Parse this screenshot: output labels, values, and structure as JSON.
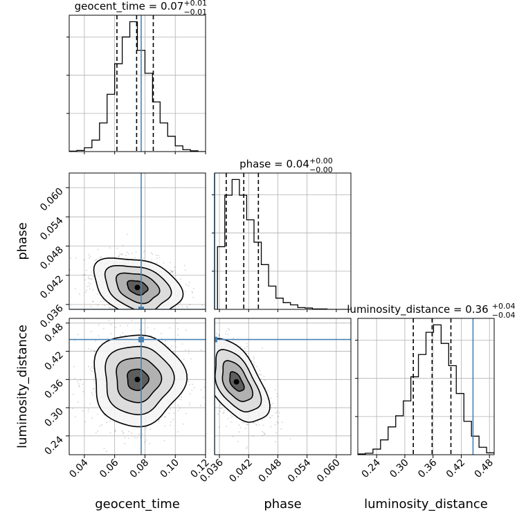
{
  "chart_data": {
    "type": "corner",
    "parameters": [
      "geocent_time",
      "phase",
      "luminosity_distance"
    ],
    "titles": [
      {
        "param": "geocent_time",
        "text": "geocent_time = 0.07",
        "plus": "+0.01",
        "minus": "−0.01"
      },
      {
        "param": "phase",
        "text": "phase = 0.04",
        "plus": "+0.00",
        "minus": "−0.00"
      },
      {
        "param": "luminosity_distance",
        "text": "luminosity_distance = 0.36",
        "plus": "+0.04",
        "minus": "−0.04"
      }
    ],
    "ranges": {
      "geocent_time": [
        0.03,
        0.12
      ],
      "phase": [
        0.035,
        0.063
      ],
      "luminosity_distance": [
        0.2,
        0.49
      ]
    },
    "ticks": {
      "geocent_time": [
        "0.04",
        "0.06",
        "0.08",
        "0.10",
        "0.12"
      ],
      "phase": [
        "0.036",
        "0.042",
        "0.048",
        "0.054",
        "0.060"
      ],
      "luminosity_distance": [
        "0.24",
        "0.30",
        "0.36",
        "0.42",
        "0.48"
      ]
    },
    "truths": {
      "geocent_time": 0.0775,
      "phase": 0.035,
      "luminosity_distance": 0.445
    },
    "quantiles": {
      "geocent_time": [
        0.0615,
        0.0745,
        0.0855
      ],
      "phase": [
        0.0374,
        0.041,
        0.044
      ],
      "luminosity_distance": [
        0.318,
        0.358,
        0.398
      ]
    },
    "histograms": {
      "geocent_time": {
        "edges": [
          0.03,
          0.035,
          0.04,
          0.045,
          0.05,
          0.055,
          0.06,
          0.065,
          0.07,
          0.075,
          0.08,
          0.085,
          0.09,
          0.095,
          0.1,
          0.105,
          0.11,
          0.115,
          0.12
        ],
        "counts": [
          1,
          3,
          10,
          30,
          75,
          150,
          230,
          300,
          340,
          265,
          205,
          130,
          75,
          40,
          15,
          5,
          2,
          0
        ]
      },
      "phase": {
        "edges": [
          0.0356,
          0.0371,
          0.0386,
          0.0401,
          0.0416,
          0.0431,
          0.0446,
          0.0461,
          0.0476,
          0.0491,
          0.0506,
          0.0521,
          0.0536,
          0.0551,
          0.0566,
          0.0581,
          0.0596,
          0.0611,
          0.0626
        ],
        "counts": [
          140,
          255,
          290,
          255,
          200,
          150,
          100,
          52,
          25,
          15,
          10,
          4,
          3,
          1,
          1,
          0,
          0,
          0
        ]
      },
      "luminosity_distance": {
        "edges": [
          0.2,
          0.2161,
          0.2322,
          0.2483,
          0.2644,
          0.2806,
          0.2967,
          0.3128,
          0.3289,
          0.345,
          0.3611,
          0.3772,
          0.3933,
          0.4094,
          0.4256,
          0.4417,
          0.4578,
          0.4739,
          0.49
        ],
        "counts": [
          2,
          4,
          15,
          40,
          75,
          105,
          145,
          210,
          270,
          330,
          350,
          300,
          240,
          165,
          90,
          50,
          20,
          5
        ]
      }
    },
    "joint": [
      {
        "x": "geocent_time",
        "y": "phase",
        "center": [
          0.075,
          0.0395
        ],
        "cov": [
          [
            0.00018,
            -1.15e-05
          ],
          [
            -1.15e-05,
            8.5e-06
          ]
        ]
      },
      {
        "x": "geocent_time",
        "y": "luminosity_distance",
        "center": [
          0.075,
          0.36
        ],
        "cov": [
          [
            0.000195,
            0.0
          ],
          [
            0.0,
            0.00205
          ]
        ]
      },
      {
        "x": "phase",
        "y": "luminosity_distance",
        "center": [
          0.0395,
          0.355
        ],
        "cov": [
          [
            8.5e-06,
            -6.2e-05
          ],
          [
            -6.2e-05,
            0.0017
          ]
        ]
      }
    ]
  }
}
